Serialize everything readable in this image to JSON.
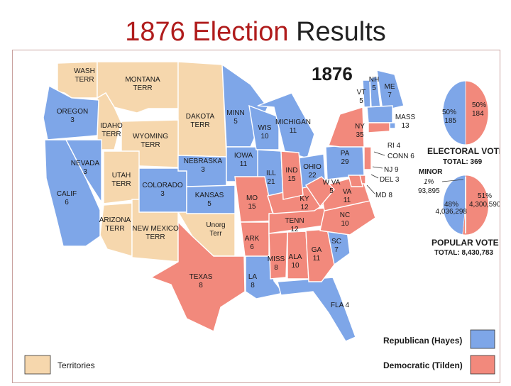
{
  "title": {
    "part1": "1876 Election",
    "part2": "Results"
  },
  "map": {
    "year": "1876",
    "colors": {
      "republican": "#7ea6e8",
      "democratic": "#f2897c",
      "territory": "#f6d7ad",
      "border": "#ffffff",
      "text": "#1a1a1a"
    },
    "regions": [
      {
        "id": "wa",
        "party": "territory",
        "lines": [
          "WASH",
          "TERR"
        ]
      },
      {
        "id": "mt",
        "party": "territory",
        "lines": [
          "MONTANA",
          "TERR"
        ]
      },
      {
        "id": "dk",
        "party": "territory",
        "lines": [
          "DAKOTA",
          "TERR"
        ]
      },
      {
        "id": "id",
        "party": "territory",
        "lines": [
          "IDAHO",
          "TERR"
        ]
      },
      {
        "id": "wy",
        "party": "territory",
        "lines": [
          "WYOMING",
          "TERR"
        ]
      },
      {
        "id": "ut",
        "party": "territory",
        "lines": [
          "UTAH",
          "TERR"
        ]
      },
      {
        "id": "az",
        "party": "territory",
        "lines": [
          "ARIZONA",
          "TERR"
        ]
      },
      {
        "id": "nm",
        "party": "territory",
        "lines": [
          "NEW MEXICO",
          "TERR"
        ]
      },
      {
        "id": "uo",
        "party": "territory",
        "lines": [
          "Unorg",
          "Terr"
        ]
      },
      {
        "id": "or",
        "party": "republican",
        "lines": [
          "OREGON",
          "3"
        ]
      },
      {
        "id": "ca",
        "party": "republican",
        "lines": [
          "CALIF",
          "6"
        ]
      },
      {
        "id": "nv",
        "party": "republican",
        "lines": [
          "NEVADA",
          "3"
        ]
      },
      {
        "id": "co",
        "party": "republican",
        "lines": [
          "COLORADO",
          "3"
        ]
      },
      {
        "id": "ne",
        "party": "republican",
        "lines": [
          "NEBRASKA",
          "3"
        ]
      },
      {
        "id": "ks",
        "party": "republican",
        "lines": [
          "KANSAS",
          "5"
        ]
      },
      {
        "id": "mn",
        "party": "republican",
        "lines": [
          "MINN",
          "5"
        ]
      },
      {
        "id": "ia",
        "party": "republican",
        "lines": [
          "IOWA",
          "11"
        ]
      },
      {
        "id": "wi",
        "party": "republican",
        "lines": [
          "WIS",
          "10"
        ]
      },
      {
        "id": "il",
        "party": "republican",
        "lines": [
          "ILL",
          "21"
        ]
      },
      {
        "id": "mi",
        "party": "republican",
        "lines": [
          "MICHIGAN",
          "11"
        ]
      },
      {
        "id": "oh",
        "party": "republican",
        "lines": [
          "OHIO",
          "22"
        ]
      },
      {
        "id": "pa",
        "party": "republican",
        "lines": [
          "PA",
          "29"
        ]
      },
      {
        "id": "vt",
        "party": "republican",
        "lines": [
          "VT",
          "5"
        ]
      },
      {
        "id": "nh",
        "party": "republican",
        "lines": [
          "NH",
          "5"
        ]
      },
      {
        "id": "me",
        "party": "republican",
        "lines": [
          "ME",
          "7"
        ]
      },
      {
        "id": "ma",
        "party": "republican",
        "lines": [
          "MASS",
          "13"
        ]
      },
      {
        "id": "ri",
        "party": "republican",
        "lines": [
          "RI 4"
        ]
      },
      {
        "id": "sc",
        "party": "republican",
        "lines": [
          "SC",
          "7"
        ]
      },
      {
        "id": "la",
        "party": "republican",
        "lines": [
          "LA",
          "8"
        ]
      },
      {
        "id": "fl",
        "party": "republican",
        "lines": [
          "FLA 4"
        ]
      },
      {
        "id": "tx",
        "party": "democratic",
        "lines": [
          "TEXAS",
          "8"
        ]
      },
      {
        "id": "mo",
        "party": "democratic",
        "lines": [
          "MO",
          "15"
        ]
      },
      {
        "id": "ar",
        "party": "democratic",
        "lines": [
          "ARK",
          "6"
        ]
      },
      {
        "id": "ms",
        "party": "democratic",
        "lines": [
          "MISS",
          "8"
        ]
      },
      {
        "id": "al",
        "party": "democratic",
        "lines": [
          "ALA",
          "10"
        ]
      },
      {
        "id": "ga",
        "party": "democratic",
        "lines": [
          "GA",
          "11"
        ]
      },
      {
        "id": "tn",
        "party": "democratic",
        "lines": [
          "TENN",
          "12"
        ]
      },
      {
        "id": "ky",
        "party": "democratic",
        "lines": [
          "KY",
          "12"
        ]
      },
      {
        "id": "in",
        "party": "democratic",
        "lines": [
          "IND",
          "15"
        ]
      },
      {
        "id": "nc",
        "party": "democratic",
        "lines": [
          "NC",
          "10"
        ]
      },
      {
        "id": "va",
        "party": "democratic",
        "lines": [
          "VA",
          "11"
        ]
      },
      {
        "id": "wv",
        "party": "democratic",
        "lines": [
          "W VA",
          "5"
        ]
      },
      {
        "id": "ny",
        "party": "democratic",
        "lines": [
          "NY",
          "35"
        ]
      },
      {
        "id": "nj",
        "party": "democratic",
        "lines": []
      },
      {
        "id": "ct",
        "party": "democratic",
        "lines": []
      },
      {
        "id": "de",
        "party": "democratic",
        "lines": []
      },
      {
        "id": "md",
        "party": "democratic",
        "lines": []
      }
    ],
    "callouts": [
      "CONN 6",
      "NJ 9",
      "DEL 3",
      "MD 8"
    ],
    "electoral": {
      "title": "ELECTORAL VOTE",
      "total": "TOTAL:  369",
      "rep_pct": "50%",
      "rep_votes": "185",
      "dem_pct": "50%",
      "dem_votes": "184",
      "rep_share": 0.5
    },
    "popular": {
      "title": "POPULAR VOTE",
      "total": "TOTAL:  8,430,783",
      "rep_pct": "48%",
      "rep_votes": "4,036,298",
      "dem_pct": "51%",
      "dem_votes": "4,300,590",
      "minor_label": "MINOR",
      "minor_pct": "1%",
      "minor_votes": "93,895",
      "rep_share": 0.48
    },
    "legend": {
      "republican": "Republican (Hayes)",
      "democratic": "Democratic (Tilden)",
      "territory": "Territories"
    }
  }
}
